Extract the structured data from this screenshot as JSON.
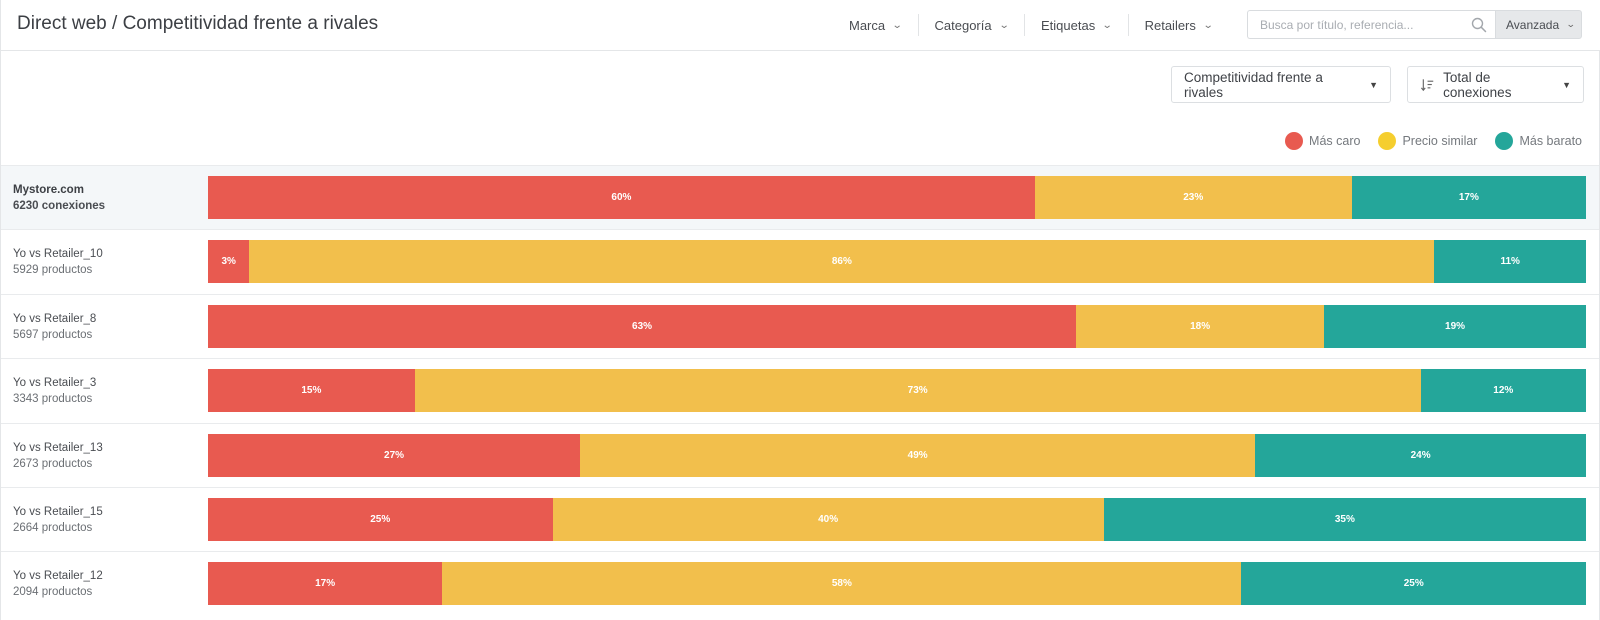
{
  "header": {
    "title": "Direct web / Competitividad frente a rivales",
    "filters": [
      "Marca",
      "Categoría",
      "Etiquetas",
      "Retailers"
    ],
    "search_placeholder": "Busca por título, referencia...",
    "advanced_label": "Avanzada"
  },
  "toolbar": {
    "view_dropdown": "Competitividad frente a rivales",
    "sort_dropdown": "Total de conexiones"
  },
  "colors": {
    "mas_caro": "#e85a50",
    "precio_similar": "#f2bf4c",
    "mas_barato": "#24a69a",
    "legend_similar_dot": "#f5ce2e"
  },
  "legend": [
    {
      "label": "Más caro",
      "color": "#e85a50"
    },
    {
      "label": "Precio similar",
      "color": "#f5ce2e"
    },
    {
      "label": "Más barato",
      "color": "#24a69a"
    }
  ],
  "chart_data": {
    "type": "bar",
    "stacked": true,
    "orientation": "horizontal",
    "categories": [
      "Mystore.com",
      "Yo vs Retailer_10",
      "Yo vs Retailer_8",
      "Yo vs Retailer_3",
      "Yo vs Retailer_13",
      "Yo vs Retailer_15",
      "Yo vs Retailer_12"
    ],
    "subtitles": [
      "6230 conexiones",
      "5929 productos",
      "5697 productos",
      "3343 productos",
      "2673 productos",
      "2664 productos",
      "2094 productos"
    ],
    "series": [
      {
        "name": "Más caro",
        "values": [
          60,
          3,
          63,
          15,
          27,
          25,
          17
        ]
      },
      {
        "name": "Precio similar",
        "values": [
          23,
          86,
          18,
          73,
          49,
          40,
          58
        ]
      },
      {
        "name": "Más barato",
        "values": [
          17,
          11,
          19,
          12,
          24,
          35,
          25
        ]
      }
    ],
    "unit": "%",
    "legend_position": "top-right"
  }
}
